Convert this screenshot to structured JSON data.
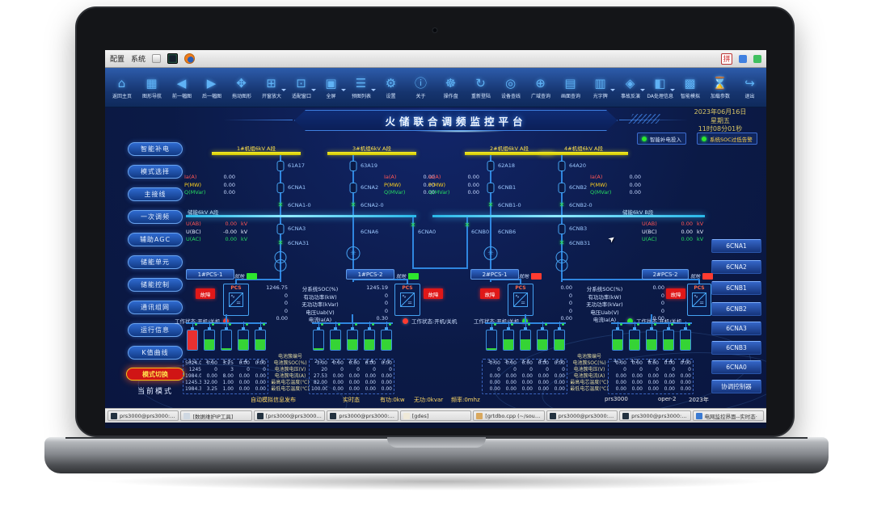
{
  "menubar": {
    "menus": [
      "配置",
      "系统"
    ],
    "ime": "拼"
  },
  "toolbar": {
    "items": [
      {
        "label": "返回主页",
        "glyph": "⌂"
      },
      {
        "label": "图形导航",
        "glyph": "▦"
      },
      {
        "label": "前一幅图",
        "glyph": "◀"
      },
      {
        "label": "后一幅图",
        "glyph": "▶"
      },
      {
        "label": "拖动图形",
        "glyph": "✥"
      },
      {
        "label": "开窗放大",
        "glyph": "⊞"
      },
      {
        "label": "适配窗口",
        "glyph": "⊡"
      },
      {
        "label": "全屏",
        "glyph": "▣"
      },
      {
        "label": "预图列表",
        "glyph": "☰"
      },
      {
        "label": "设置",
        "glyph": "⚙"
      },
      {
        "label": "关于",
        "glyph": "ⓘ"
      },
      {
        "label": "操作盘",
        "glyph": "☸"
      },
      {
        "label": "重新登陆",
        "glyph": "↻"
      },
      {
        "label": "设备查线",
        "glyph": "◎"
      },
      {
        "label": "广域查询",
        "glyph": "⊕"
      },
      {
        "label": "画面查询",
        "glyph": "▤"
      },
      {
        "label": "光字牌",
        "glyph": "▥"
      },
      {
        "label": "事故反演",
        "glyph": "◈"
      },
      {
        "label": "DA处理信息",
        "glyph": "◧"
      },
      {
        "label": "智能模拟",
        "glyph": "▩"
      },
      {
        "label": "加载参数",
        "glyph": "⌛"
      },
      {
        "label": "退出",
        "glyph": "↪"
      }
    ]
  },
  "header": {
    "title": "火储联合调频监控平台",
    "date": "2023年06月16日",
    "weekday": "星期五",
    "time": "11时08分01秒",
    "indicators": [
      {
        "label": "智能补电投入",
        "led": "#2de62d",
        "color": "#dceaff"
      },
      {
        "label": "系统SOC过低告警",
        "led": "#2de62d",
        "color": "#ffd24a"
      }
    ]
  },
  "sidebar": {
    "items": [
      "智能补电",
      "模式选择",
      "主接线",
      "一次调频",
      "辅助AGC",
      "储能单元",
      "储能控制",
      "通讯组网",
      "运行信息",
      "K值曲线"
    ],
    "mode_badge": "模式切换",
    "mode_label": "当前模式"
  },
  "right_panel": {
    "buttons": [
      "6CNA1",
      "6CNA2",
      "6CNB1",
      "6CNB2",
      "6CNA3",
      "6CNB3",
      "6CNA0"
    ],
    "controller": "协调控制器"
  },
  "diagram": {
    "meas_labels": {
      "ia": "Ia(A)",
      "p": "P(MW)",
      "q": "Q(MVar)",
      "uab": "U(AB)",
      "ubc": "U(BC)",
      "uac": "U(AC)",
      "kv": "kV"
    },
    "feeders": [
      {
        "bus": "1#机组6kV A段",
        "cb": "61A17",
        "sw": "6CNA1",
        "ds": "6CNA1-0",
        "ia": "0.00",
        "p": "0.00",
        "q": "0.00"
      },
      {
        "bus": "3#机组6kV A段",
        "cb": "63A19",
        "sw": "6CNA2",
        "ds": "6CNA2-0",
        "ia": "0.00",
        "p": "0.00",
        "q": "0.00"
      },
      {
        "bus": "2#机组6kV A段",
        "cb": "62A18",
        "sw": "6CNB1",
        "ds": "6CNB1-0",
        "ia": "0.00",
        "p": "0.00",
        "q": "0.00"
      },
      {
        "bus": "4#机组6kV A段",
        "cb": "64A20",
        "sw": "6CNB2",
        "ds": "6CNB2-0",
        "ia": "0.00",
        "p": "0.00",
        "q": "0.00"
      }
    ],
    "bus_a": {
      "label": "储能6kV A段",
      "uab": "0.00",
      "ubc": "-0.00",
      "uac": "0.00"
    },
    "bus_b": {
      "label": "储能6kV B段",
      "uab": "0.00",
      "ubc": "0.00",
      "uac": "0.00"
    },
    "below": {
      "f1cb": "6CNA3",
      "f1ds": "6CNA31",
      "f2": "6CNA6",
      "tie_a": "6CNA0",
      "tie_b": "6CNB0",
      "f3": "6CNB6",
      "f4cb": "6CNB3",
      "f4ds": "6CNB31"
    },
    "icons": {
      "fan": "✳",
      "x": "✕",
      "ac": "∿",
      "dc": "=",
      "cursor": "➤"
    }
  },
  "pcs": {
    "units": [
      {
        "button": "1#PCS-1",
        "local": "就地",
        "local_color": "#2de62d",
        "fault": "故障",
        "status": "工作状态:开机/关机",
        "dot": "#ff3b30"
      },
      {
        "button": "1#PCS-2",
        "local": "就地",
        "local_color": "#2de62d",
        "fault": "故障",
        "status": "工作状态:开机/关机",
        "dot": "#ff3b30"
      },
      {
        "button": "2#PCS-1",
        "local": "就地",
        "local_color": "#ff3b30",
        "fault": "故障",
        "status": "工作状态:开机/关机",
        "dot": "#2de62d"
      },
      {
        "button": "2#PCS-2",
        "local": "就地",
        "local_color": "#ff3b30",
        "fault": "故障",
        "status": "工作状态:开机/关机",
        "dot": "#2de62d"
      }
    ],
    "box_label": "PCS",
    "table_labels": [
      "分系统SOC(%)",
      "有功功率(kW)",
      "无功功率(kVar)",
      "电压Uab(V)",
      "电流Ia(A)"
    ],
    "t1_left": [
      "1246.75",
      "0",
      "0",
      "0",
      "0.00"
    ],
    "t1_right": [
      "1245.19",
      "0",
      "0",
      "0",
      "0.30"
    ],
    "t2_left": [
      "0.00",
      "0",
      "0",
      "0",
      "0.00"
    ],
    "t2_right": [
      "0.00",
      "0",
      "0",
      "0",
      "0.00"
    ]
  },
  "batteries": {
    "row_labels": [
      "电池簇编号",
      "电池簇SOC(%)",
      "电池簇电压(V)",
      "电池簇电流(A)",
      "最高电芯温度(℃)",
      "最低电芯温度(℃)"
    ],
    "groups": [
      {
        "ids": [
          "1-1",
          "1-2",
          "1-3",
          "1-4",
          "1-5"
        ],
        "fills": [
          "100%",
          "55%",
          "8%",
          "55%",
          "55%"
        ],
        "colors": [
          "#e83030",
          "#35d435",
          "#35d435",
          "#35d435",
          "#35d435"
        ],
        "table": [
          [
            "5024.00",
            "0.00",
            "3.25",
            "0.00",
            "0.00"
          ],
          [
            "1245",
            "0",
            "3",
            "0",
            "0"
          ],
          [
            "1984.00",
            "0.00",
            "8.00",
            "0.00",
            "0.00"
          ],
          [
            "1245.35",
            "32.00",
            "1.00",
            "0.00",
            "0.00"
          ],
          [
            "1984.30",
            "3.25",
            "1.00",
            "0.00",
            "0.00"
          ]
        ]
      },
      {
        "ids": [
          "2-1",
          "2-2",
          "2-3",
          "2-4",
          "2-5"
        ],
        "fills": [
          "8%",
          "55%",
          "55%",
          "55%",
          "55%"
        ],
        "colors": [
          "#35d435",
          "#35d435",
          "#35d435",
          "#35d435",
          "#35d435"
        ],
        "table": [
          [
            "3.00",
            "0.00",
            "0.00",
            "0.00",
            "0.00"
          ],
          [
            "20",
            "0",
            "0",
            "0",
            "0"
          ],
          [
            "27.53",
            "0.00",
            "0.00",
            "0.00",
            "0.00"
          ],
          [
            "82.00",
            "0.00",
            "0.00",
            "0.00",
            "0.00"
          ],
          [
            "100.00",
            "0.00",
            "0.00",
            "0.00",
            "0.00"
          ]
        ]
      },
      {
        "ids": [
          "3-1",
          "3-2",
          "3-3",
          "3-4",
          "3-5"
        ],
        "fills": [
          "8%",
          "55%",
          "55%",
          "55%",
          "55%"
        ],
        "colors": [
          "#35d435",
          "#35d435",
          "#35d435",
          "#35d435",
          "#35d435"
        ],
        "table": [
          [
            "0.00",
            "0.00",
            "0.00",
            "0.00",
            "0.00"
          ],
          [
            "0",
            "0",
            "0",
            "0",
            "0"
          ],
          [
            "0.00",
            "0.00",
            "0.00",
            "0.00",
            "0.00"
          ],
          [
            "0.00",
            "0.00",
            "0.00",
            "0.00",
            "0.00"
          ],
          [
            "0.00",
            "0.00",
            "0.00",
            "0.00",
            "0.00"
          ]
        ]
      },
      {
        "ids": [
          "4-1",
          "4-2",
          "4-3",
          "4-4",
          "4-5"
        ],
        "fills": [
          "55%",
          "55%",
          "55%",
          "55%",
          "55%"
        ],
        "colors": [
          "#35d435",
          "#35d435",
          "#35d435",
          "#35d435",
          "#35d435"
        ],
        "table": [
          [
            "0.00",
            "0.00",
            "0.00",
            "0.00",
            "0.00"
          ],
          [
            "0",
            "0",
            "0",
            "0",
            "0"
          ],
          [
            "0.00",
            "0.00",
            "0.00",
            "0.00",
            "0.00"
          ],
          [
            "0.00",
            "0.00",
            "0.00",
            "0.00",
            "0.00"
          ],
          [
            "0.00",
            "0.00",
            "0.00",
            "0.00",
            "0.00"
          ]
        ]
      }
    ]
  },
  "statusbar": {
    "items": [
      "自动模拟信息发布",
      "实时态",
      "有功:0kw",
      "无功:0kvar",
      "频率:0mhz"
    ],
    "right": [
      "prs3000",
      "oper-2",
      "2023年"
    ]
  },
  "taskbar": {
    "windows": [
      {
        "label": "prs3000@prs3000:~·-",
        "color": "#233240"
      },
      {
        "label": "[数据维护IP工具]",
        "color": "#cfd8e2"
      },
      {
        "label": "[prs3000@prs3000:~·-",
        "color": "#233240"
      },
      {
        "label": "prs3000@prs3000:~/...",
        "color": "#233240"
      },
      {
        "label": "[gdes]",
        "color": "#efe9d8"
      },
      {
        "label": "[grtdbo.cpp (~/sourc··",
        "color": "#d9a85e"
      },
      {
        "label": "prs3000@prs3000:~/·-",
        "color": "#233240"
      },
      {
        "label": "prs3000@prs3000:~/ ·-",
        "color": "#233240"
      },
      {
        "label": "电网监控界面--实时态·",
        "color": "#3a7ad2"
      }
    ]
  }
}
